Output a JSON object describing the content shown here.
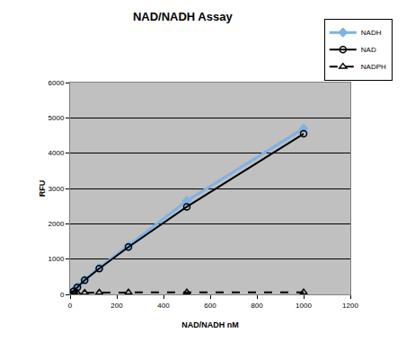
{
  "chart_data": {
    "type": "line",
    "title": "NAD/NADH Assay",
    "x_label": "NAD/NADH nM",
    "y_label": "RFU",
    "x": [
      0,
      15.6,
      31.25,
      62.5,
      125,
      250,
      500,
      1000
    ],
    "series": [
      {
        "name": "NADH",
        "color": "#7fb2e5",
        "marker": "diamond",
        "line_style": "solid",
        "values": [
          0,
          100,
          220,
          420,
          750,
          1380,
          2650,
          4700
        ]
      },
      {
        "name": "NAD",
        "color": "#000000",
        "marker": "circle-open",
        "line_style": "solid",
        "values": [
          0,
          90,
          200,
          400,
          730,
          1340,
          2480,
          4550
        ]
      },
      {
        "name": "NADPH",
        "color": "#000000",
        "marker": "triangle-up-open",
        "line_style": "dash",
        "values": [
          30,
          35,
          40,
          45,
          50,
          55,
          60,
          60
        ]
      }
    ],
    "xlim": [
      0,
      1200
    ],
    "xticks": [
      0,
      200,
      400,
      600,
      800,
      1000,
      1200
    ],
    "ylim": [
      0,
      6000
    ],
    "yticks": [
      0,
      1000,
      2000,
      3000,
      4000,
      5000,
      6000
    ],
    "grid": true,
    "legend": "top right"
  }
}
